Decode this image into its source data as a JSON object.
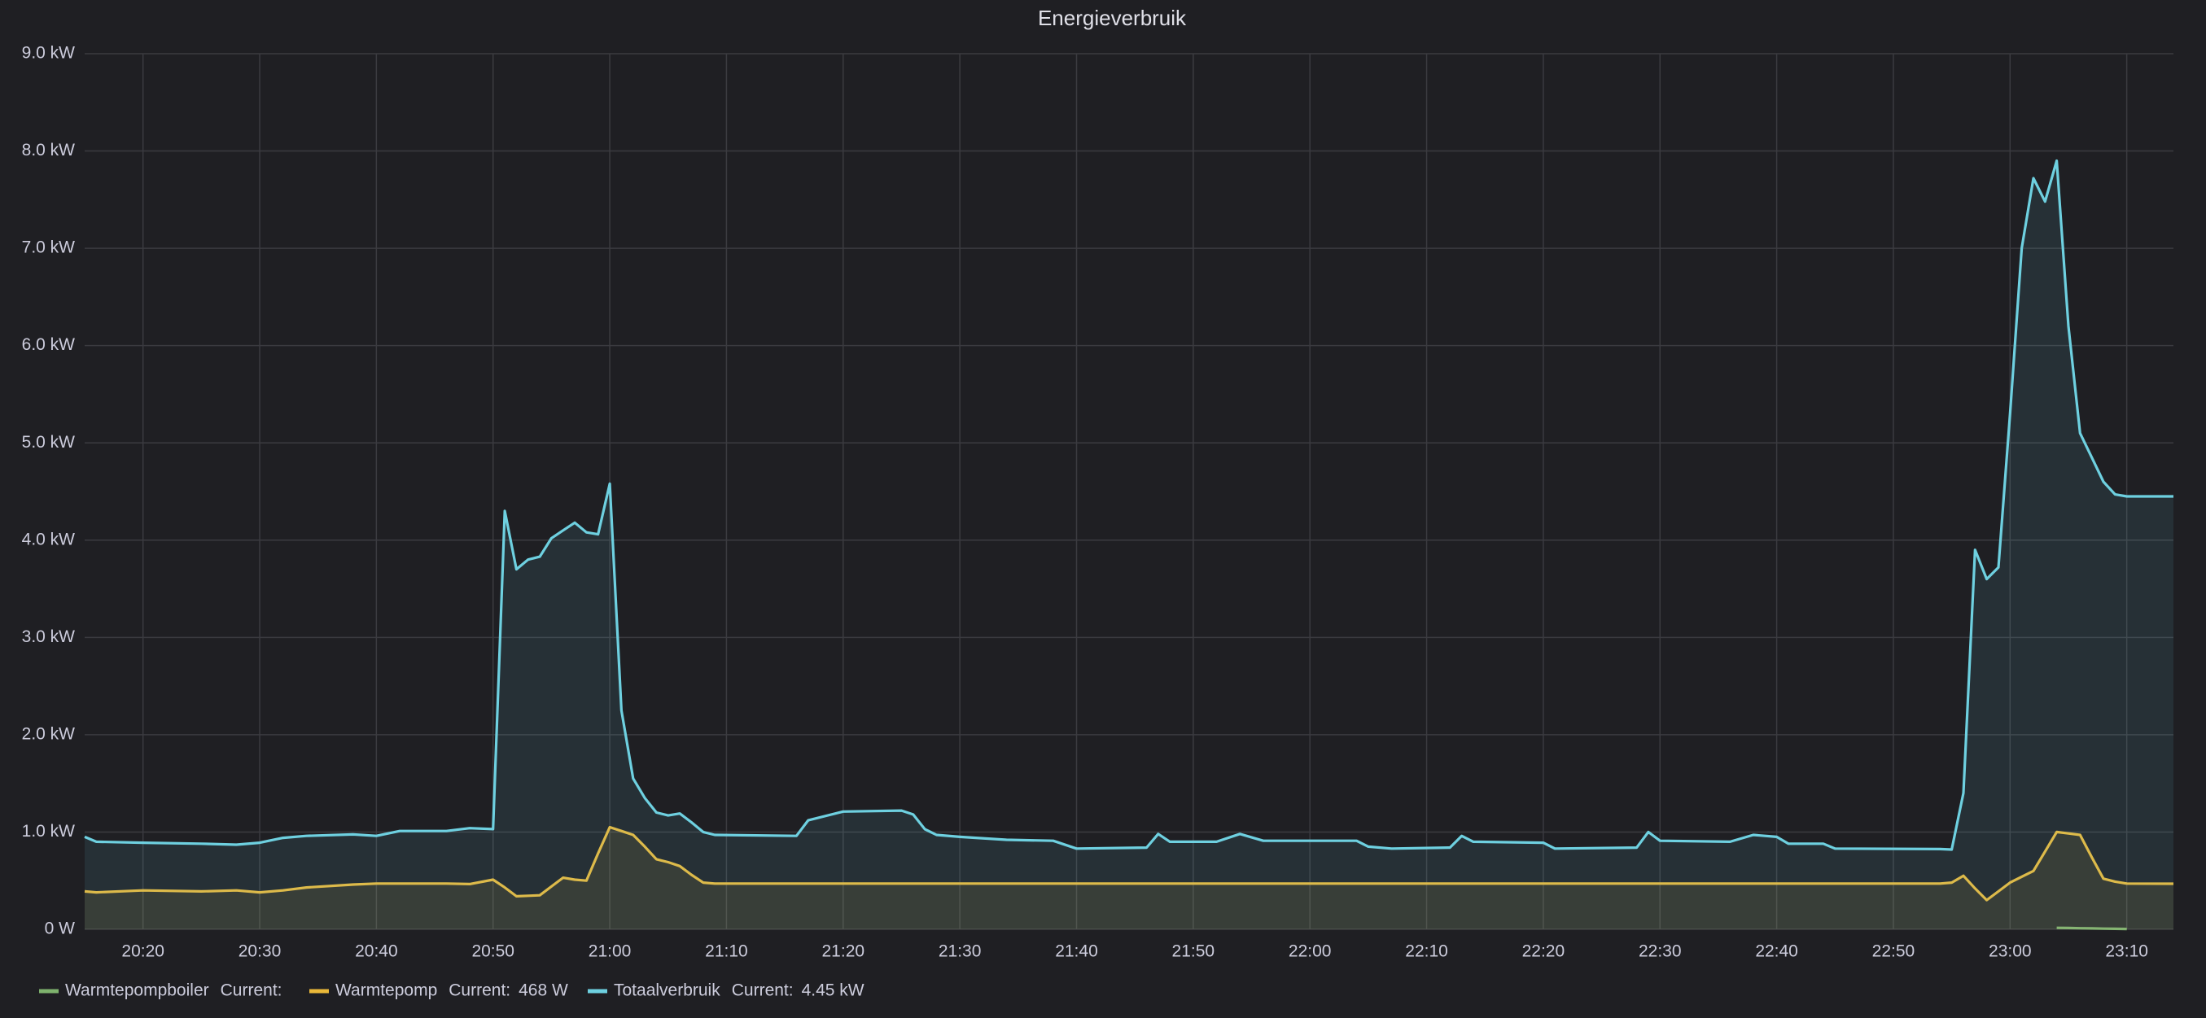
{
  "chart_data": {
    "type": "line",
    "title": "Energieverbruik",
    "x": [
      1215,
      1216,
      1220,
      1225,
      1228,
      1230,
      1232,
      1234,
      1238,
      1240,
      1242,
      1246,
      1248,
      1250,
      1251,
      1252,
      1253,
      1254,
      1255,
      1256,
      1257,
      1258,
      1259,
      1260,
      1261,
      1262,
      1263,
      1264,
      1265,
      1266,
      1267,
      1268,
      1269,
      1276,
      1277,
      1280,
      1285,
      1286,
      1287,
      1288,
      1290,
      1294,
      1298,
      1300,
      1306,
      1307,
      1308,
      1312,
      1314,
      1316,
      1324,
      1325,
      1327,
      1332,
      1333,
      1334,
      1340,
      1341,
      1348,
      1349,
      1350,
      1356,
      1358,
      1360,
      1361,
      1364,
      1365,
      1374,
      1375,
      1376,
      1377,
      1378,
      1379,
      1380,
      1381,
      1382,
      1383,
      1384,
      1385,
      1386,
      1387,
      1388,
      1389,
      1390,
      1394
    ],
    "series": [
      {
        "name": "Warmtepompboiler",
        "color": "#7eb26d",
        "values": [
          null,
          null,
          null,
          null,
          null,
          null,
          null,
          null,
          null,
          null,
          null,
          null,
          null,
          null,
          null,
          null,
          null,
          null,
          null,
          null,
          null,
          null,
          null,
          null,
          null,
          null,
          null,
          null,
          null,
          null,
          null,
          null,
          null,
          null,
          null,
          null,
          null,
          null,
          null,
          null,
          null,
          null,
          null,
          null,
          null,
          null,
          null,
          null,
          null,
          null,
          null,
          null,
          null,
          null,
          null,
          null,
          null,
          null,
          null,
          null,
          null,
          null,
          null,
          null,
          null,
          null,
          null,
          null,
          null,
          null,
          null,
          null,
          null,
          null,
          null,
          null,
          null,
          15,
          13,
          11,
          9,
          7,
          5,
          3,
          null
        ]
      },
      {
        "name": "Warmtepomp",
        "color": "#eab839",
        "current": "468 W",
        "values": [
          390,
          380,
          400,
          390,
          400,
          380,
          400,
          430,
          460,
          470,
          470,
          470,
          465,
          510,
          430,
          340,
          345,
          350,
          440,
          530,
          510,
          500,
          780,
          1050,
          1010,
          970,
          850,
          720,
          690,
          650,
          560,
          480,
          470,
          470,
          470,
          470,
          470,
          470,
          470,
          470,
          470,
          470,
          470,
          470,
          470,
          470,
          470,
          470,
          470,
          470,
          470,
          470,
          470,
          470,
          470,
          470,
          470,
          470,
          470,
          470,
          470,
          470,
          470,
          470,
          470,
          470,
          470,
          470,
          480,
          550,
          420,
          300,
          390,
          480,
          540,
          600,
          800,
          1000,
          985,
          970,
          740,
          520,
          490,
          470,
          468
        ]
      },
      {
        "name": "Totaalverbruik",
        "color": "#6ed0e0",
        "current": "4.45 kW",
        "values": [
          950,
          900,
          890,
          880,
          870,
          890,
          940,
          960,
          975,
          960,
          1010,
          1010,
          1040,
          1030,
          4300,
          3700,
          3800,
          3830,
          4020,
          4100,
          4180,
          4080,
          4060,
          4580,
          2250,
          1550,
          1350,
          1200,
          1170,
          1190,
          1100,
          1000,
          970,
          960,
          1120,
          1210,
          1220,
          1180,
          1030,
          970,
          950,
          920,
          910,
          830,
          840,
          980,
          900,
          900,
          980,
          910,
          910,
          850,
          830,
          840,
          960,
          900,
          890,
          830,
          840,
          1000,
          910,
          900,
          970,
          950,
          880,
          880,
          830,
          825,
          820,
          1400,
          3900,
          3600,
          3720,
          5300,
          7000,
          7720,
          7480,
          7900,
          6200,
          5100,
          4850,
          4600,
          4470,
          4450,
          4450
        ]
      }
    ],
    "legend_value_title": "Current:",
    "xlim": [
      1215,
      1394
    ],
    "xticks": [
      {
        "value": 1220,
        "label": "20:20"
      },
      {
        "value": 1230,
        "label": "20:30"
      },
      {
        "value": 1240,
        "label": "20:40"
      },
      {
        "value": 1250,
        "label": "20:50"
      },
      {
        "value": 1260,
        "label": "21:00"
      },
      {
        "value": 1270,
        "label": "21:10"
      },
      {
        "value": 1280,
        "label": "21:20"
      },
      {
        "value": 1290,
        "label": "21:30"
      },
      {
        "value": 1300,
        "label": "21:40"
      },
      {
        "value": 1310,
        "label": "21:50"
      },
      {
        "value": 1320,
        "label": "22:00"
      },
      {
        "value": 1330,
        "label": "22:10"
      },
      {
        "value": 1340,
        "label": "22:20"
      },
      {
        "value": 1350,
        "label": "22:30"
      },
      {
        "value": 1360,
        "label": "22:40"
      },
      {
        "value": 1370,
        "label": "22:50"
      },
      {
        "value": 1380,
        "label": "23:00"
      },
      {
        "value": 1390,
        "label": "23:10"
      }
    ],
    "ylim": [
      0,
      9000
    ],
    "yticks": [
      {
        "value": 0,
        "label": "0 W"
      },
      {
        "value": 1000,
        "label": "1.0 kW"
      },
      {
        "value": 2000,
        "label": "2.0 kW"
      },
      {
        "value": 3000,
        "label": "3.0 kW"
      },
      {
        "value": 4000,
        "label": "4.0 kW"
      },
      {
        "value": 5000,
        "label": "5.0 kW"
      },
      {
        "value": 6000,
        "label": "6.0 kW"
      },
      {
        "value": 7000,
        "label": "7.0 kW"
      },
      {
        "value": 8000,
        "label": "8.0 kW"
      },
      {
        "value": 9000,
        "label": "9.0 kW"
      }
    ],
    "grid": true
  }
}
